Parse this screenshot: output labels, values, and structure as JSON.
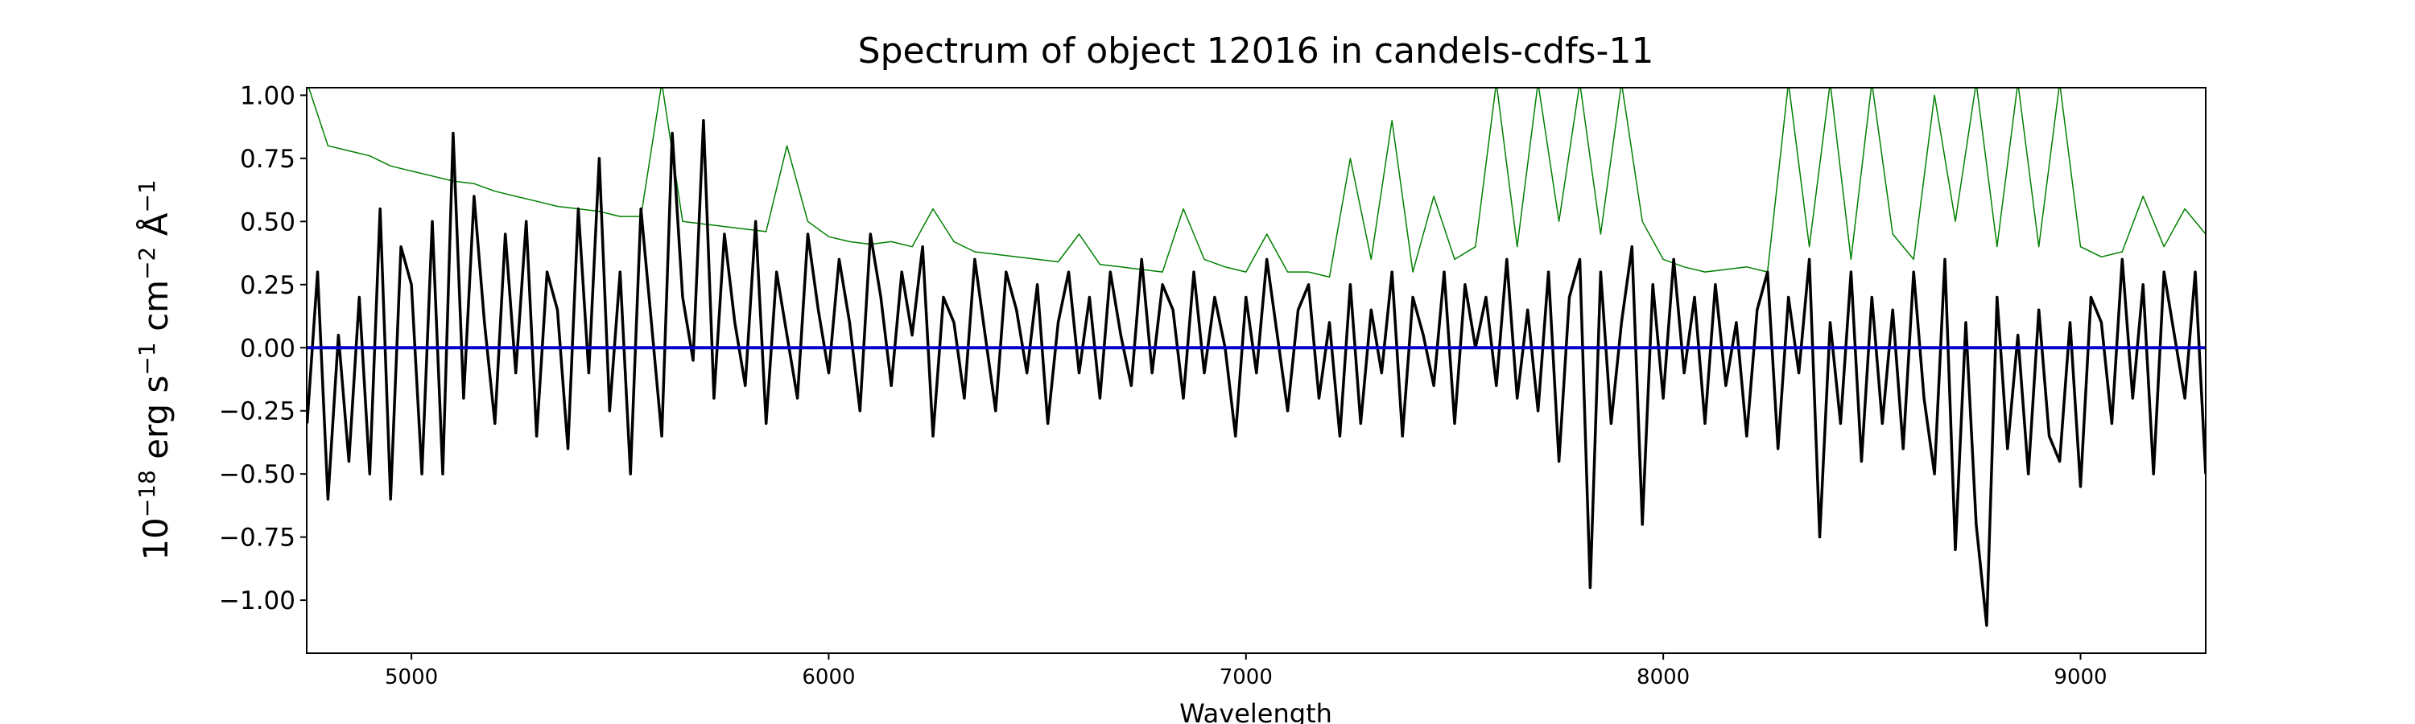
{
  "chart_data": {
    "type": "line",
    "title": "Spectrum of object 12016 in candels-cdfs-11",
    "xlabel": "Wavelength",
    "ylabel_parts": [
      "10",
      "−18",
      " erg s",
      "−1",
      " cm",
      "−2",
      " Å",
      "−1"
    ],
    "xlim": [
      4749,
      9300
    ],
    "ylim": [
      -1.21,
      1.03
    ],
    "xticks": [
      5000,
      6000,
      7000,
      8000,
      9000
    ],
    "xtick_labels": [
      "5000",
      "6000",
      "7000",
      "8000",
      "9000"
    ],
    "yticks": [
      1.0,
      0.75,
      0.5,
      0.25,
      0.0,
      -0.25,
      -0.5,
      -0.75,
      -1.0
    ],
    "ytick_labels": [
      "1.00",
      "0.75",
      "0.50",
      "0.25",
      "0.00",
      "−0.25",
      "−0.50",
      "−0.75",
      "−1.00"
    ],
    "grid": false,
    "legend": "none",
    "series": [
      {
        "role": "flux",
        "color": "#000000",
        "x_start": 4750,
        "x_step": 25,
        "values": [
          -0.3,
          0.3,
          -0.6,
          0.05,
          -0.45,
          0.2,
          -0.5,
          0.55,
          -0.6,
          0.4,
          0.25,
          -0.5,
          0.5,
          -0.5,
          0.85,
          -0.2,
          0.6,
          0.1,
          -0.3,
          0.45,
          -0.1,
          0.5,
          -0.35,
          0.3,
          0.15,
          -0.4,
          0.55,
          -0.1,
          0.75,
          -0.25,
          0.3,
          -0.5,
          0.55,
          0.1,
          -0.35,
          0.85,
          0.2,
          -0.05,
          0.9,
          -0.2,
          0.45,
          0.1,
          -0.15,
          0.5,
          -0.3,
          0.3,
          0.05,
          -0.2,
          0.45,
          0.15,
          -0.1,
          0.35,
          0.1,
          -0.25,
          0.45,
          0.2,
          -0.15,
          0.3,
          0.05,
          0.4,
          -0.35,
          0.2,
          0.1,
          -0.2,
          0.35,
          0.05,
          -0.25,
          0.3,
          0.15,
          -0.1,
          0.25,
          -0.3,
          0.1,
          0.3,
          -0.1,
          0.2,
          -0.2,
          0.3,
          0.05,
          -0.15,
          0.35,
          -0.1,
          0.25,
          0.15,
          -0.2,
          0.3,
          -0.1,
          0.2,
          0.0,
          -0.35,
          0.2,
          -0.1,
          0.35,
          0.05,
          -0.25,
          0.15,
          0.25,
          -0.2,
          0.1,
          -0.35,
          0.25,
          -0.3,
          0.15,
          -0.1,
          0.3,
          -0.35,
          0.2,
          0.05,
          -0.15,
          0.3,
          -0.3,
          0.25,
          0.0,
          0.2,
          -0.15,
          0.35,
          -0.2,
          0.15,
          -0.25,
          0.3,
          -0.45,
          0.2,
          0.35,
          -0.95,
          0.3,
          -0.3,
          0.1,
          0.4,
          -0.7,
          0.25,
          -0.2,
          0.35,
          -0.1,
          0.2,
          -0.3,
          0.25,
          -0.15,
          0.1,
          -0.35,
          0.15,
          0.3,
          -0.4,
          0.2,
          -0.1,
          0.35,
          -0.75,
          0.1,
          -0.3,
          0.3,
          -0.45,
          0.2,
          -0.3,
          0.15,
          -0.4,
          0.3,
          -0.2,
          -0.5,
          0.35,
          -0.8,
          0.1,
          -0.7,
          -1.1,
          0.2,
          -0.4,
          0.05,
          -0.5,
          0.15,
          -0.35,
          -0.45,
          0.1,
          -0.55,
          0.2,
          0.1,
          -0.3,
          0.35,
          -0.2,
          0.25,
          -0.5,
          0.3,
          0.05,
          -0.2,
          0.3,
          -0.5
        ]
      },
      {
        "role": "error",
        "color": "#008000",
        "x_start": 4750,
        "x_step": 50,
        "values": [
          1.05,
          0.8,
          0.78,
          0.76,
          0.72,
          0.7,
          0.68,
          0.66,
          0.65,
          0.62,
          0.6,
          0.58,
          0.56,
          0.55,
          0.54,
          0.52,
          0.52,
          1.05,
          0.5,
          0.49,
          0.48,
          0.47,
          0.46,
          0.8,
          0.5,
          0.44,
          0.42,
          0.41,
          0.42,
          0.4,
          0.55,
          0.42,
          0.38,
          0.37,
          0.36,
          0.35,
          0.34,
          0.45,
          0.33,
          0.32,
          0.31,
          0.3,
          0.55,
          0.35,
          0.32,
          0.3,
          0.45,
          0.3,
          0.3,
          0.28,
          0.75,
          0.35,
          0.9,
          0.3,
          0.6,
          0.35,
          0.4,
          1.05,
          0.4,
          1.05,
          0.5,
          1.05,
          0.45,
          1.05,
          0.5,
          0.35,
          0.32,
          0.3,
          0.31,
          0.32,
          0.3,
          1.05,
          0.4,
          1.05,
          0.35,
          1.05,
          0.45,
          0.35,
          1.0,
          0.5,
          1.05,
          0.4,
          1.05,
          0.4,
          1.05,
          0.4,
          0.36,
          0.38,
          0.6,
          0.4,
          0.55,
          0.45
        ]
      },
      {
        "role": "zero-line",
        "color": "#0000cc",
        "value": 0.0
      }
    ]
  }
}
